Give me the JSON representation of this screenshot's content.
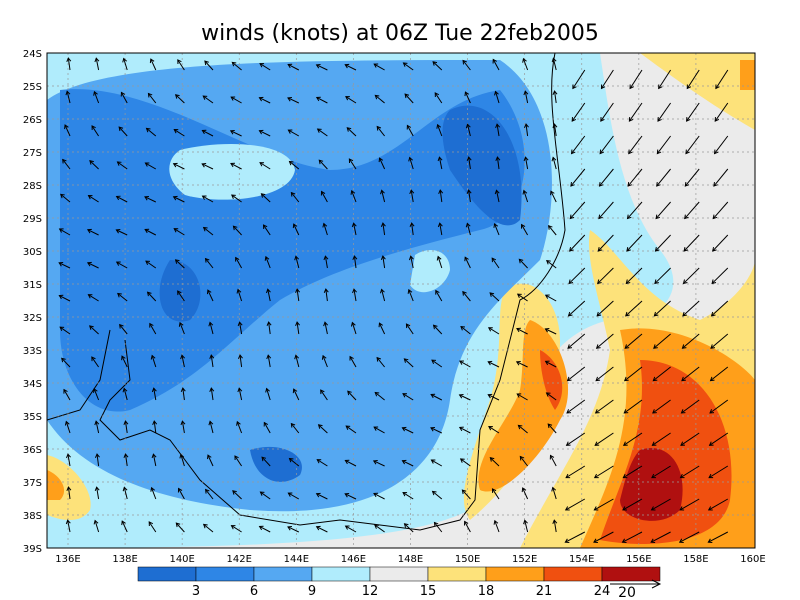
{
  "title": "winds (knots) at 06Z Tue 22feb2005",
  "lat_labels": [
    "24S",
    "25S",
    "26S",
    "27S",
    "28S",
    "29S",
    "30S",
    "31S",
    "32S",
    "33S",
    "34S",
    "35S",
    "36S",
    "37S",
    "38S",
    "39S"
  ],
  "lon_labels": [
    "136E",
    "138E",
    "140E",
    "142E",
    "144E",
    "146E",
    "148E",
    "150E",
    "152E",
    "154E",
    "156E",
    "158E",
    "160E"
  ],
  "colorbar": {
    "colors": [
      "#1e6ed2",
      "#2e86e6",
      "#55a8f2",
      "#b0ecfc",
      "#ebebeb",
      "#fde27a",
      "#ff9f1a",
      "#f05010",
      "#b01010"
    ],
    "labels": [
      3,
      6,
      9,
      12,
      15,
      18,
      21,
      24
    ]
  },
  "reference_vector": {
    "label": "20"
  }
}
